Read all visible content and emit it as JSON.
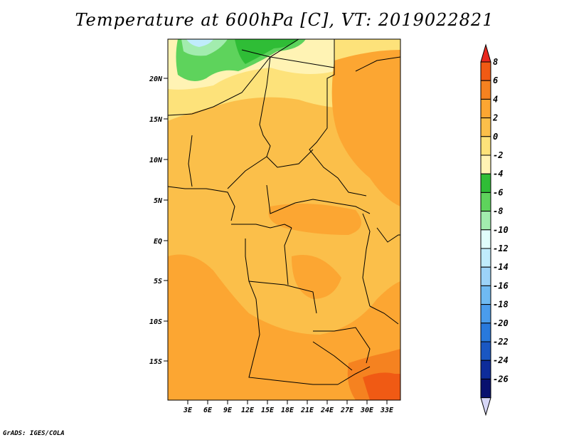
{
  "title": "Temperature at 600hPa [C], VT: 2019022821",
  "credit": "GrADS: IGES/COLA",
  "map": {
    "lon_labels": [
      "3E",
      "6E",
      "9E",
      "12E",
      "15E",
      "18E",
      "21E",
      "24E",
      "27E",
      "30E",
      "33E"
    ],
    "lat_labels": [
      "20N",
      "15N",
      "10N",
      "5N",
      "EQ",
      "5S",
      "10S",
      "15S"
    ],
    "lon_range": [
      0,
      35
    ],
    "lat_range": [
      -20,
      25
    ]
  },
  "colorbar": {
    "labels": [
      "8",
      "6",
      "4",
      "2",
      "0",
      "-2",
      "-4",
      "-6",
      "-8",
      "-10",
      "-12",
      "-14",
      "-16",
      "-18",
      "-20",
      "-22",
      "-24",
      "-26"
    ],
    "colors": [
      "#e8281e",
      "#f05a14",
      "#f58220",
      "#fca632",
      "#fbbf4a",
      "#fde27a",
      "#fff3b4",
      "#2fbd36",
      "#5ed35c",
      "#a2ecae",
      "#e1fdfb",
      "#c0ecfc",
      "#9cd3f8",
      "#6fbaf2",
      "#4a9cec",
      "#2879dc",
      "#1a57c2",
      "#0d2c9a",
      "#08106e",
      "#d6d6f6"
    ]
  }
}
